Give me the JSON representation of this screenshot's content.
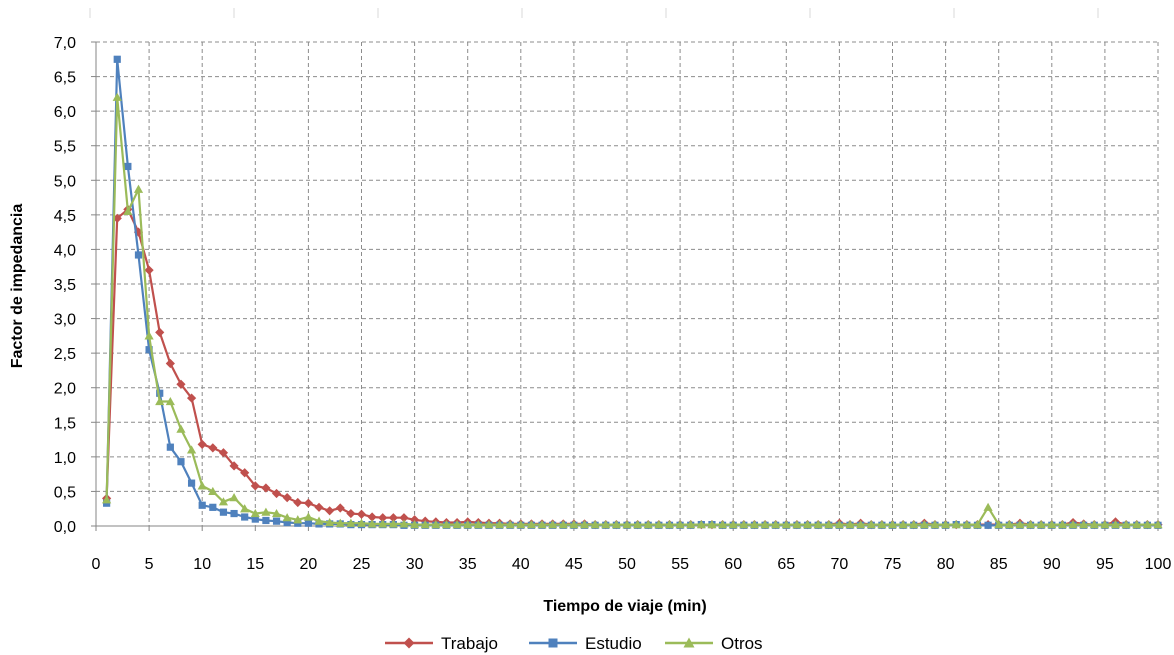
{
  "chart_data": {
    "type": "line",
    "xlabel": "Tiempo de viaje (min)",
    "ylabel": "Factor de impedancia",
    "xlim": [
      0,
      100
    ],
    "ylim": [
      0,
      7
    ],
    "x_ticks": [
      0,
      5,
      10,
      15,
      20,
      25,
      30,
      35,
      40,
      45,
      50,
      55,
      60,
      65,
      70,
      75,
      80,
      85,
      90,
      95,
      100
    ],
    "y_ticks": [
      "0,0",
      "0,5",
      "1,0",
      "1,5",
      "2,0",
      "2,5",
      "3,0",
      "3,5",
      "4,0",
      "4,5",
      "5,0",
      "5,5",
      "6,0",
      "6,5",
      "7,0"
    ],
    "grid": true,
    "legend_position": "bottom",
    "x": [
      1,
      2,
      3,
      4,
      5,
      6,
      7,
      8,
      9,
      10,
      11,
      12,
      13,
      14,
      15,
      16,
      17,
      18,
      19,
      20,
      21,
      22,
      23,
      24,
      25,
      26,
      27,
      28,
      29,
      30,
      31,
      32,
      33,
      34,
      35,
      36,
      37,
      38,
      39,
      40,
      41,
      42,
      43,
      44,
      45,
      46,
      47,
      48,
      49,
      50,
      51,
      52,
      53,
      54,
      55,
      56,
      57,
      58,
      59,
      60,
      61,
      62,
      63,
      64,
      65,
      66,
      67,
      68,
      69,
      70,
      71,
      72,
      73,
      74,
      75,
      76,
      77,
      78,
      79,
      80,
      81,
      82,
      83,
      84,
      85,
      86,
      87,
      88,
      89,
      90,
      91,
      92,
      93,
      94,
      95,
      96,
      97,
      98,
      99,
      100
    ],
    "series": [
      {
        "name": "Trabajo",
        "color": "#c0504d",
        "marker": "diamond",
        "values": [
          0.4,
          4.45,
          4.58,
          4.25,
          3.7,
          2.8,
          2.35,
          2.05,
          1.85,
          1.18,
          1.13,
          1.06,
          0.87,
          0.77,
          0.58,
          0.55,
          0.47,
          0.41,
          0.34,
          0.33,
          0.27,
          0.22,
          0.26,
          0.18,
          0.17,
          0.13,
          0.12,
          0.12,
          0.12,
          0.09,
          0.07,
          0.06,
          0.05,
          0.05,
          0.06,
          0.05,
          0.04,
          0.04,
          0.03,
          0.03,
          0.03,
          0.03,
          0.03,
          0.03,
          0.03,
          0.03,
          0.02,
          0.02,
          0.02,
          0.02,
          0.02,
          0.02,
          0.02,
          0.02,
          0.02,
          0.02,
          0.02,
          0.02,
          0.02,
          0.02,
          0.02,
          0.02,
          0.02,
          0.02,
          0.02,
          0.02,
          0.02,
          0.02,
          0.02,
          0.04,
          0.02,
          0.04,
          0.02,
          0.02,
          0.02,
          0.02,
          0.02,
          0.04,
          0.02,
          0.02,
          0.02,
          0.02,
          0.02,
          0.02,
          0.02,
          0.02,
          0.04,
          0.02,
          0.02,
          0.02,
          0.02,
          0.05,
          0.03,
          0.02,
          0.02,
          0.06,
          0.02,
          0.02,
          0.02,
          0.02
        ]
      },
      {
        "name": "Estudio",
        "color": "#4f81bd",
        "marker": "square",
        "values": [
          0.33,
          6.75,
          5.2,
          3.92,
          2.55,
          1.92,
          1.14,
          0.93,
          0.62,
          0.3,
          0.27,
          0.2,
          0.18,
          0.13,
          0.1,
          0.08,
          0.07,
          0.05,
          0.04,
          0.04,
          0.03,
          0.03,
          0.03,
          0.02,
          0.02,
          0.02,
          0.02,
          0.02,
          0.01,
          0.01,
          0.01,
          0.01,
          0.01,
          0.01,
          0.01,
          0.01,
          0.01,
          0.01,
          0.01,
          0.01,
          0.01,
          0.01,
          0.01,
          0.01,
          0.01,
          0.01,
          0.01,
          0.01,
          0.01,
          0.01,
          0.01,
          0.01,
          0.01,
          0.01,
          0.01,
          0.01,
          0.02,
          0.02,
          0.01,
          0.01,
          0.01,
          0.01,
          0.01,
          0.01,
          0.01,
          0.01,
          0.01,
          0.01,
          0.01,
          0.01,
          0.01,
          0.01,
          0.01,
          0.01,
          0.01,
          0.01,
          0.01,
          0.01,
          0.01,
          0.01,
          0.02,
          0.01,
          0.01,
          0.01,
          0.01,
          0.01,
          0.01,
          0.01,
          0.01,
          0.01,
          0.01,
          0.01,
          0.01,
          0.01,
          0.01,
          0.01,
          0.01,
          0.01,
          0.01,
          0.01
        ]
      },
      {
        "name": "Otros",
        "color": "#9bbb59",
        "marker": "triangle",
        "values": [
          0.38,
          6.2,
          4.55,
          4.87,
          2.75,
          1.8,
          1.8,
          1.4,
          1.1,
          0.58,
          0.5,
          0.35,
          0.41,
          0.25,
          0.18,
          0.2,
          0.18,
          0.12,
          0.09,
          0.13,
          0.07,
          0.05,
          0.04,
          0.04,
          0.04,
          0.03,
          0.03,
          0.03,
          0.03,
          0.02,
          0.02,
          0.02,
          0.02,
          0.02,
          0.02,
          0.02,
          0.02,
          0.02,
          0.02,
          0.02,
          0.02,
          0.02,
          0.02,
          0.02,
          0.02,
          0.02,
          0.02,
          0.02,
          0.02,
          0.02,
          0.02,
          0.02,
          0.02,
          0.02,
          0.02,
          0.02,
          0.02,
          0.02,
          0.02,
          0.02,
          0.02,
          0.02,
          0.02,
          0.02,
          0.02,
          0.02,
          0.02,
          0.02,
          0.02,
          0.02,
          0.02,
          0.02,
          0.02,
          0.02,
          0.02,
          0.02,
          0.02,
          0.02,
          0.02,
          0.02,
          0.02,
          0.02,
          0.02,
          0.27,
          0.02,
          0.02,
          0.02,
          0.02,
          0.02,
          0.02,
          0.02,
          0.02,
          0.02,
          0.02,
          0.02,
          0.02,
          0.02,
          0.02,
          0.02,
          0.02
        ]
      }
    ]
  }
}
